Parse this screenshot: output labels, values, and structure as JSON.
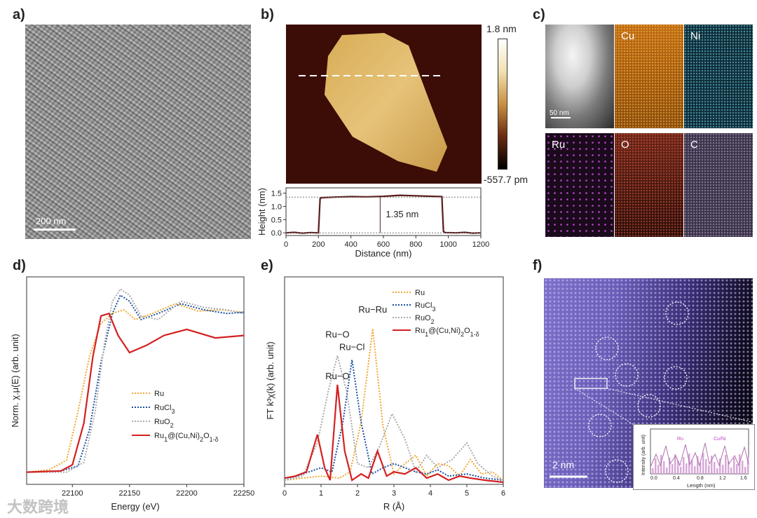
{
  "panels": {
    "a": "a)",
    "b": "b)",
    "c": "c)",
    "d": "d)",
    "e": "e)",
    "f": "f)"
  },
  "panel_a": {
    "scale_label": "200 nm"
  },
  "panel_b": {
    "colorbar_max": "1.8 nm",
    "colorbar_min": "-557.7 pm",
    "height_annotation": "1.35 nm"
  },
  "panel_c": {
    "scale_label": "50 nm",
    "maps": [
      {
        "label": "Cu",
        "color": "#e8891a"
      },
      {
        "label": "Ni",
        "color": "#3aa7c8"
      },
      {
        "label": "Ru",
        "color": "#c03ad0"
      },
      {
        "label": "O",
        "color": "#d85a3a"
      },
      {
        "label": "C",
        "color": "#a898c8"
      }
    ]
  },
  "panel_f": {
    "scale_label": "2 nm",
    "inset": {
      "xlabel": "Length (nm)",
      "ylabel": "Intensity (arb. unit)",
      "ru_label": "Ru",
      "cuni_label": "Cu/Ni",
      "xticks": [
        "0.0",
        "0.4",
        "0.8",
        "1.2",
        "1.6"
      ]
    }
  },
  "watermark": "大数跨境",
  "chart_data": [
    {
      "id": "b-profile",
      "type": "line",
      "xlabel": "Distance (nm)",
      "ylabel": "Height (nm)",
      "xlim": [
        0,
        1200
      ],
      "ylim": [
        -0.1,
        1.7
      ],
      "xticks": [
        0,
        200,
        400,
        600,
        800,
        1000,
        1200
      ],
      "yticks": [
        0.0,
        0.5,
        1.0,
        1.5
      ],
      "series": [
        {
          "name": "profile",
          "color": "#5a1a1a",
          "x": [
            0,
            50,
            100,
            150,
            200,
            210,
            220,
            300,
            400,
            500,
            600,
            700,
            800,
            900,
            960,
            970,
            980,
            1050,
            1100,
            1150,
            1200
          ],
          "y": [
            0.0,
            0.02,
            -0.01,
            0.01,
            0.0,
            1.3,
            1.33,
            1.35,
            1.37,
            1.36,
            1.38,
            1.42,
            1.4,
            1.38,
            1.37,
            0.05,
            0.01,
            0.0,
            0.02,
            -0.01,
            0.0
          ]
        }
      ],
      "annotation": {
        "label": "1.35 nm",
        "x": 580,
        "y_from": 0.0,
        "y_to": 1.35
      }
    },
    {
      "id": "d-xanes",
      "type": "line",
      "xlabel": "Energy (eV)",
      "ylabel": "Norm. χ.μ(E) (arb. unit)",
      "xlim": [
        22060,
        22250
      ],
      "ylim": [
        -0.1,
        1.6
      ],
      "xticks": [
        22100,
        22150,
        22200,
        22250
      ],
      "legend": [
        "Ru",
        "RuCl3",
        "RuO2",
        "Ru1@(Cu,Ni)2O1-δ"
      ],
      "series": [
        {
          "name": "Ru",
          "color": "#f0a830",
          "dash": "2,2",
          "x": [
            22060,
            22080,
            22095,
            22105,
            22115,
            22125,
            22135,
            22145,
            22155,
            22170,
            22190,
            22210,
            22230,
            22250
          ],
          "y": [
            0.0,
            0.02,
            0.1,
            0.5,
            0.95,
            1.22,
            1.3,
            1.33,
            1.25,
            1.3,
            1.38,
            1.32,
            1.33,
            1.31
          ]
        },
        {
          "name": "RuCl3",
          "color": "#1a4fa0",
          "dash": "2,2",
          "x": [
            22060,
            22090,
            22105,
            22115,
            22125,
            22135,
            22142,
            22150,
            22160,
            22175,
            22195,
            22215,
            22235,
            22250
          ],
          "y": [
            0.0,
            0.01,
            0.05,
            0.35,
            0.9,
            1.3,
            1.45,
            1.4,
            1.25,
            1.3,
            1.38,
            1.33,
            1.3,
            1.31
          ]
        },
        {
          "name": "RuO2",
          "color": "#aaaaaa",
          "dash": "2,2",
          "x": [
            22060,
            22095,
            22110,
            22120,
            22128,
            22135,
            22142,
            22150,
            22160,
            22175,
            22195,
            22215,
            22235,
            22250
          ],
          "y": [
            0.0,
            0.0,
            0.08,
            0.5,
            1.05,
            1.4,
            1.5,
            1.45,
            1.28,
            1.25,
            1.4,
            1.35,
            1.33,
            1.3
          ]
        },
        {
          "name": "Ru1@(Cu,Ni)2O1-δ",
          "color": "#d42020",
          "dash": "",
          "x": [
            22060,
            22090,
            22100,
            22110,
            22118,
            22125,
            22132,
            22140,
            22150,
            22165,
            22180,
            22200,
            22225,
            22250
          ],
          "y": [
            0.0,
            0.01,
            0.06,
            0.4,
            0.95,
            1.28,
            1.3,
            1.12,
            0.98,
            1.04,
            1.12,
            1.17,
            1.1,
            1.12
          ]
        }
      ]
    },
    {
      "id": "e-exafs",
      "type": "line",
      "xlabel": "R (Å)",
      "ylabel": "FT k³χ(k) (arb. unit)",
      "xlim": [
        0,
        6
      ],
      "ylim": [
        0,
        1.0
      ],
      "xticks": [
        0,
        1,
        2,
        3,
        4,
        5,
        6
      ],
      "legend": [
        "Ru",
        "RuCl3",
        "RuO2",
        "Ru1@(Cu,Ni)2O1-δ"
      ],
      "peak_labels": [
        {
          "label": "Ru−Ru",
          "color": "#f0a830",
          "x": 2.42,
          "y": 0.8
        },
        {
          "label": "Ru−O",
          "color": "#aaaaaa",
          "x": 1.45,
          "y": 0.68
        },
        {
          "label": "Ru−Cl",
          "color": "#1a4fa0",
          "x": 1.85,
          "y": 0.62
        },
        {
          "label": "Ru−O",
          "color": "#d42020",
          "x": 1.45,
          "y": 0.48
        }
      ],
      "series": [
        {
          "name": "Ru",
          "color": "#f0a830",
          "dash": "2,2",
          "x": [
            0,
            0.5,
            1.0,
            1.5,
            1.8,
            2.1,
            2.42,
            2.7,
            3.0,
            3.3,
            3.6,
            3.9,
            4.2,
            4.5,
            4.8,
            5.1,
            5.4,
            5.7,
            6.0
          ],
          "y": [
            0.02,
            0.03,
            0.04,
            0.03,
            0.06,
            0.3,
            0.75,
            0.28,
            0.05,
            0.1,
            0.14,
            0.04,
            0.1,
            0.09,
            0.04,
            0.12,
            0.05,
            0.06,
            0.02
          ]
        },
        {
          "name": "RuCl3",
          "color": "#1a4fa0",
          "dash": "2,2",
          "x": [
            0,
            0.5,
            1.0,
            1.3,
            1.6,
            1.85,
            2.1,
            2.4,
            2.7,
            3.0,
            3.3,
            3.6,
            3.9,
            4.2,
            4.5,
            5.0,
            5.5,
            6.0
          ],
          "y": [
            0.02,
            0.05,
            0.08,
            0.06,
            0.3,
            0.6,
            0.3,
            0.05,
            0.08,
            0.1,
            0.08,
            0.06,
            0.05,
            0.07,
            0.04,
            0.05,
            0.03,
            0.02
          ]
        },
        {
          "name": "RuO2",
          "color": "#aaaaaa",
          "dash": "2,2",
          "x": [
            0,
            0.5,
            0.9,
            1.2,
            1.45,
            1.7,
            2.0,
            2.3,
            2.6,
            2.95,
            3.3,
            3.6,
            3.9,
            4.2,
            4.6,
            5.0,
            5.3,
            5.7,
            6.0
          ],
          "y": [
            0.02,
            0.04,
            0.2,
            0.45,
            0.62,
            0.45,
            0.1,
            0.08,
            0.18,
            0.34,
            0.22,
            0.06,
            0.14,
            0.08,
            0.12,
            0.2,
            0.1,
            0.04,
            0.02
          ]
        },
        {
          "name": "Ru1@(Cu,Ni)2O1-δ",
          "color": "#d42020",
          "dash": "",
          "x": [
            0,
            0.3,
            0.6,
            0.9,
            1.1,
            1.25,
            1.45,
            1.65,
            1.85,
            2.1,
            2.3,
            2.55,
            2.8,
            3.0,
            3.3,
            3.6,
            3.9,
            4.2,
            4.5,
            4.8,
            5.1,
            5.5,
            6.0
          ],
          "y": [
            0.03,
            0.04,
            0.06,
            0.24,
            0.08,
            0.02,
            0.48,
            0.16,
            0.02,
            0.05,
            0.03,
            0.16,
            0.04,
            0.06,
            0.05,
            0.08,
            0.03,
            0.05,
            0.02,
            0.04,
            0.03,
            0.02,
            0.01
          ]
        }
      ]
    }
  ]
}
